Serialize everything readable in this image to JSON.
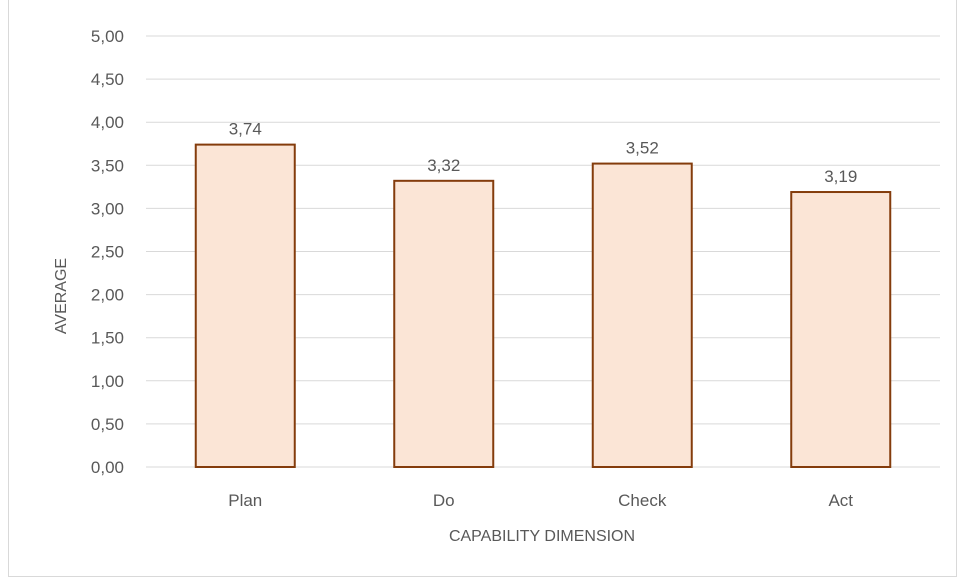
{
  "chart_data": {
    "type": "bar",
    "categories": [
      "Plan",
      "Do",
      "Check",
      "Act"
    ],
    "values": [
      3.74,
      3.32,
      3.52,
      3.19
    ],
    "data_labels": [
      "3,74",
      "3,32",
      "3,52",
      "3,19"
    ],
    "xlabel": "CAPABILITY DIMENSION",
    "ylabel": "AVERAGE",
    "ylim": [
      0,
      5
    ],
    "yticks": [
      0,
      0.5,
      1,
      1.5,
      2,
      2.5,
      3,
      3.5,
      4,
      4.5,
      5
    ],
    "ytick_labels": [
      "0,00",
      "0,50",
      "1,00",
      "1,50",
      "2,00",
      "2,50",
      "3,00",
      "3,50",
      "4,00",
      "4,50",
      "5,00"
    ],
    "grid": true,
    "legend": "none",
    "colors": {
      "bar_fill": "#fbe5d6",
      "bar_stroke": "#843c0c",
      "grid": "#d9d9d9",
      "text": "#595959"
    }
  }
}
